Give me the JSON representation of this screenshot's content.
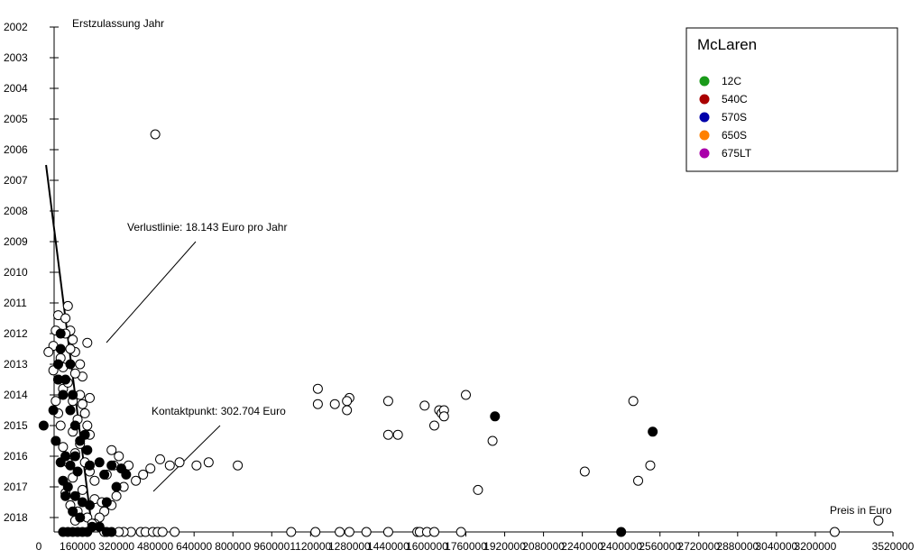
{
  "chart_data": {
    "type": "scatter",
    "xlabel": "Preis in Euro",
    "ylabel": "Erstzulassung Jahr",
    "xlim": [
      0,
      3520000
    ],
    "ylim": [
      2002,
      2018.5
    ],
    "y_reversed": true,
    "x_ticks": [
      "0",
      "160000",
      "320000",
      "480000",
      "640000",
      "800000",
      "960000",
      "1120000",
      "1280000",
      "1440000",
      "1600000",
      "1760000",
      "1920000",
      "2080000",
      "2240000",
      "2400000",
      "2560000",
      "2720000",
      "2880000",
      "3040000",
      "3200000",
      "3520000"
    ],
    "x_tick_values": [
      0,
      160000,
      320000,
      480000,
      640000,
      800000,
      960000,
      1120000,
      1280000,
      1440000,
      1600000,
      1760000,
      1920000,
      2080000,
      2240000,
      2400000,
      2560000,
      2720000,
      2880000,
      3040000,
      3200000,
      3520000
    ],
    "y_ticks": [
      2002,
      2003,
      2004,
      2005,
      2006,
      2007,
      2008,
      2009,
      2010,
      2011,
      2012,
      2013,
      2014,
      2015,
      2016,
      2017,
      2018
    ],
    "annotations": {
      "verlust": "Verlustlinie:  18.143  Euro pro Jahr",
      "kontakt": "Kontaktpunkt:  302.704 Euro"
    },
    "legend": {
      "title": "McLaren",
      "placement": "top-right",
      "items": [
        {
          "label": "12C",
          "color": "#1a9a1a"
        },
        {
          "label": "540C",
          "color": "#aa0000"
        },
        {
          "label": "570S",
          "color": "#0000aa"
        },
        {
          "label": "650S",
          "color": "#ff8000"
        },
        {
          "label": "675LT",
          "color": "#aa00aa"
        }
      ]
    },
    "series": [
      {
        "marker": "open",
        "points": [
          [
            480000,
            2005.5
          ],
          [
            1150000,
            2013.8
          ],
          [
            1150000,
            2014.3
          ],
          [
            1220000,
            2014.3
          ],
          [
            1280000,
            2014.1
          ],
          [
            1270000,
            2014.2
          ],
          [
            1270000,
            2014.5
          ],
          [
            1440000,
            2014.2
          ],
          [
            1440000,
            2015.3
          ],
          [
            1480000,
            2015.3
          ],
          [
            1590000,
            2014.35
          ],
          [
            1650000,
            2014.5
          ],
          [
            1660000,
            2014.6
          ],
          [
            1670000,
            2014.5
          ],
          [
            1670000,
            2014.7
          ],
          [
            1630000,
            2015.0
          ],
          [
            1760000,
            2014.0
          ],
          [
            1810000,
            2017.1
          ],
          [
            1870000,
            2015.5
          ],
          [
            2250000,
            2016.5
          ],
          [
            2450000,
            2014.2
          ],
          [
            2470000,
            2016.8
          ],
          [
            2520000,
            2016.3
          ],
          [
            3460000,
            2018.1
          ],
          [
            3280000,
            2018.5
          ],
          [
            650000,
            2016.3
          ],
          [
            700000,
            2016.2
          ],
          [
            820000,
            2016.3
          ],
          [
            580000,
            2016.2
          ],
          [
            540000,
            2016.3
          ],
          [
            500000,
            2016.1
          ],
          [
            460000,
            2016.4
          ],
          [
            430000,
            2016.6
          ],
          [
            400000,
            2016.8
          ],
          [
            370000,
            2016.3
          ],
          [
            330000,
            2016.0
          ],
          [
            300000,
            2015.8
          ],
          [
            310000,
            2016.3
          ],
          [
            280000,
            2016.6
          ],
          [
            350000,
            2017.0
          ],
          [
            320000,
            2017.3
          ],
          [
            300000,
            2017.6
          ],
          [
            270000,
            2017.8
          ],
          [
            250000,
            2018.0
          ],
          [
            230000,
            2018.2
          ],
          [
            200000,
            2012.3
          ],
          [
            210000,
            2014.1
          ],
          [
            120000,
            2011.1
          ],
          [
            80000,
            2011.4
          ],
          [
            70000,
            2011.9
          ],
          [
            60000,
            2012.4
          ],
          [
            40000,
            2012.6
          ],
          [
            110000,
            2011.5
          ],
          [
            130000,
            2011.9
          ],
          [
            140000,
            2012.2
          ],
          [
            150000,
            2012.6
          ],
          [
            60000,
            2013.2
          ],
          [
            80000,
            2013.5
          ],
          [
            100000,
            2013.8
          ],
          [
            170000,
            2013.0
          ],
          [
            180000,
            2013.4
          ],
          [
            170000,
            2014.0
          ],
          [
            180000,
            2014.3
          ],
          [
            70000,
            2014.2
          ],
          [
            80000,
            2014.6
          ],
          [
            90000,
            2015.0
          ],
          [
            190000,
            2014.6
          ],
          [
            200000,
            2015.0
          ],
          [
            210000,
            2015.3
          ],
          [
            100000,
            2015.7
          ],
          [
            150000,
            2015.9
          ],
          [
            190000,
            2016.2
          ],
          [
            210000,
            2016.5
          ],
          [
            230000,
            2016.8
          ],
          [
            180000,
            2017.1
          ],
          [
            230000,
            2017.4
          ],
          [
            260000,
            2017.5
          ],
          [
            160000,
            2017.8
          ],
          [
            200000,
            2018.0
          ],
          [
            220000,
            2018.2
          ],
          [
            110000,
            2012.0
          ],
          [
            130000,
            2012.5
          ],
          [
            100000,
            2013.1
          ],
          [
            120000,
            2013.6
          ],
          [
            140000,
            2014.2
          ],
          [
            160000,
            2014.8
          ],
          [
            140000,
            2015.2
          ],
          [
            170000,
            2015.6
          ],
          [
            120000,
            2016.2
          ],
          [
            140000,
            2016.7
          ],
          [
            110000,
            2017.2
          ],
          [
            130000,
            2017.6
          ],
          [
            150000,
            2018.1
          ],
          [
            90000,
            2012.8
          ],
          [
            150000,
            2013.3
          ],
          [
            380000,
            2018.5
          ],
          [
            420000,
            2018.5
          ],
          [
            440000,
            2018.5
          ],
          [
            470000,
            2018.5
          ],
          [
            490000,
            2018.5
          ],
          [
            510000,
            2018.5
          ],
          [
            560000,
            2018.5
          ],
          [
            350000,
            2018.5
          ],
          [
            330000,
            2018.5
          ],
          [
            270000,
            2018.5
          ],
          [
            1040000,
            2018.5
          ],
          [
            1140000,
            2018.5
          ],
          [
            1240000,
            2018.5
          ],
          [
            1280000,
            2018.5
          ],
          [
            1350000,
            2018.5
          ],
          [
            1440000,
            2018.5
          ],
          [
            1560000,
            2018.5
          ],
          [
            1570000,
            2018.5
          ],
          [
            1600000,
            2018.5
          ],
          [
            1630000,
            2018.5
          ],
          [
            1740000,
            2018.5
          ]
        ]
      },
      {
        "marker": "filled",
        "points": [
          [
            1880000,
            2014.7
          ],
          [
            2530000,
            2015.2
          ],
          [
            2400000,
            2018.5
          ],
          [
            20000,
            2015.0
          ],
          [
            60000,
            2014.5
          ],
          [
            80000,
            2013.0
          ],
          [
            90000,
            2012.0
          ],
          [
            110000,
            2013.5
          ],
          [
            100000,
            2014.0
          ],
          [
            130000,
            2014.5
          ],
          [
            150000,
            2015.0
          ],
          [
            170000,
            2015.5
          ],
          [
            200000,
            2015.8
          ],
          [
            110000,
            2016.0
          ],
          [
            130000,
            2016.3
          ],
          [
            160000,
            2016.5
          ],
          [
            100000,
            2016.8
          ],
          [
            120000,
            2017.0
          ],
          [
            150000,
            2017.3
          ],
          [
            180000,
            2017.5
          ],
          [
            110000,
            2017.3
          ],
          [
            140000,
            2017.8
          ],
          [
            170000,
            2018.0
          ],
          [
            210000,
            2017.6
          ],
          [
            280000,
            2017.5
          ],
          [
            320000,
            2017.0
          ],
          [
            360000,
            2016.6
          ],
          [
            300000,
            2016.3
          ],
          [
            270000,
            2016.6
          ],
          [
            340000,
            2016.4
          ],
          [
            220000,
            2018.3
          ],
          [
            250000,
            2018.3
          ],
          [
            280000,
            2018.5
          ],
          [
            300000,
            2018.5
          ],
          [
            180000,
            2018.5
          ],
          [
            200000,
            2018.5
          ],
          [
            140000,
            2018.5
          ],
          [
            120000,
            2018.5
          ],
          [
            100000,
            2018.5
          ],
          [
            160000,
            2018.5
          ],
          [
            90000,
            2012.5
          ],
          [
            80000,
            2013.5
          ],
          [
            130000,
            2013.0
          ],
          [
            140000,
            2014.0
          ],
          [
            70000,
            2015.5
          ],
          [
            90000,
            2016.2
          ],
          [
            150000,
            2016.0
          ],
          [
            210000,
            2016.3
          ],
          [
            250000,
            2016.2
          ],
          [
            190000,
            2015.3
          ]
        ]
      }
    ],
    "loss_line": [
      [
        30000,
        2006.5
      ],
      [
        220000,
        2018.4
      ]
    ]
  }
}
